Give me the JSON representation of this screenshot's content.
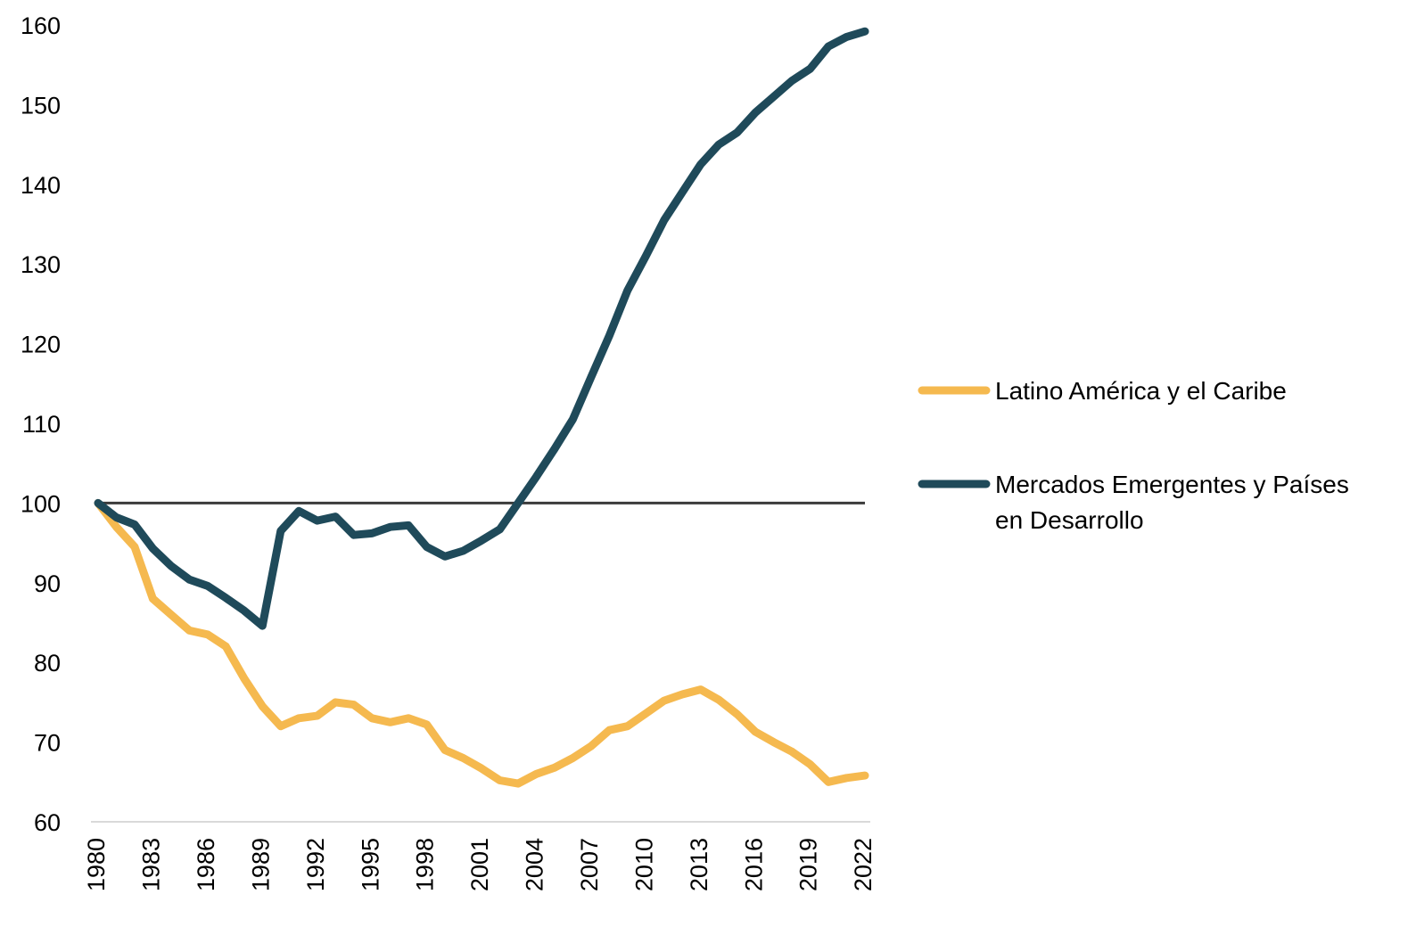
{
  "chart_data": {
    "type": "line",
    "title": "",
    "xlabel": "",
    "ylabel": "",
    "x": [
      1980,
      1981,
      1982,
      1983,
      1984,
      1985,
      1986,
      1987,
      1988,
      1989,
      1990,
      1991,
      1992,
      1993,
      1994,
      1995,
      1996,
      1997,
      1998,
      1999,
      2000,
      2001,
      2002,
      2003,
      2004,
      2005,
      2006,
      2007,
      2008,
      2009,
      2010,
      2011,
      2012,
      2013,
      2014,
      2015,
      2016,
      2017,
      2018,
      2019,
      2020,
      2021,
      2022
    ],
    "xticks": [
      "1980",
      "1983",
      "1986",
      "1989",
      "1992",
      "1995",
      "1998",
      "2001",
      "2004",
      "2007",
      "2010",
      "2013",
      "2016",
      "2019",
      "2022"
    ],
    "yticks": [
      "60",
      "70",
      "80",
      "90",
      "100",
      "110",
      "120",
      "130",
      "140",
      "150",
      "160"
    ],
    "ylim": [
      60,
      160
    ],
    "grid": false,
    "reference_line": {
      "y": 100,
      "color": "#3b3b3b"
    },
    "legend_position": "right",
    "series": [
      {
        "name": "Latino América y el Caribe",
        "color": "#F5B94F",
        "values": [
          100,
          97,
          94.5,
          88,
          86,
          84,
          83.5,
          82,
          78,
          74.5,
          72,
          73,
          73.3,
          75,
          74.7,
          73,
          72.5,
          73,
          72.2,
          69,
          68,
          66.7,
          65.2,
          64.8,
          66,
          66.8,
          68,
          69.5,
          71.5,
          72,
          73.6,
          75.2,
          76,
          76.6,
          75.3,
          73.5,
          71.3,
          70,
          68.8,
          67.2,
          65,
          65.5,
          65.8
        ]
      },
      {
        "name": "Mercados Emergentes y Países",
        "name_line2": "en Desarrollo",
        "color": "#1F4A5A",
        "values": [
          100,
          98.2,
          97.3,
          94.3,
          92.1,
          90.4,
          89.6,
          88.1,
          86.5,
          84.6,
          96.5,
          99,
          97.8,
          98.3,
          96,
          96.2,
          97,
          97.2,
          94.5,
          93.3,
          94,
          95.3,
          96.7,
          100,
          103.3,
          106.8,
          110.5,
          115.8,
          121,
          126.7,
          131,
          135.5,
          139,
          142.5,
          145,
          146.5,
          149,
          151,
          153,
          154.5,
          157.3,
          158.5,
          159.2
        ]
      }
    ]
  }
}
